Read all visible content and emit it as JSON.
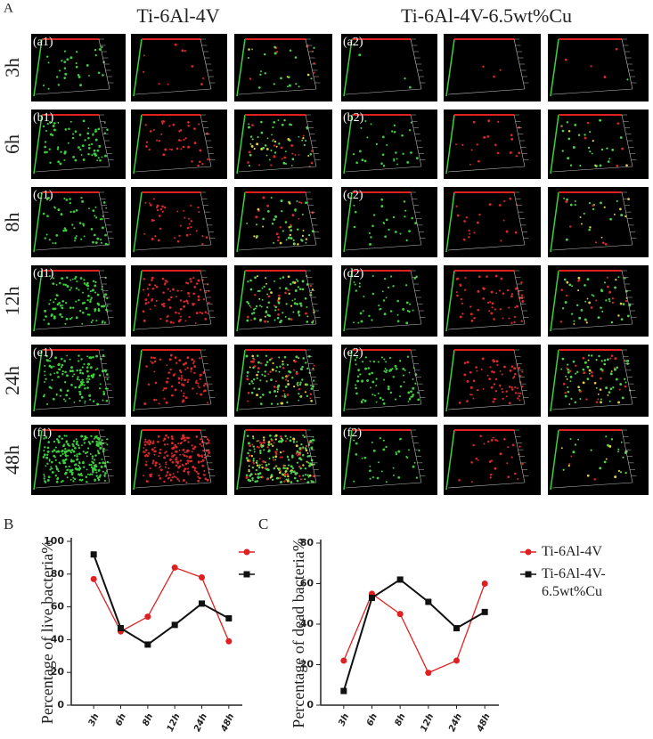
{
  "figure": {
    "panel_label": "A",
    "column_titles": [
      "Ti-6Al-4V",
      "Ti-6Al-4V-6.5wt%Cu"
    ],
    "row_labels": [
      "3h",
      "6h",
      "8h",
      "12h",
      "24h",
      "48h"
    ],
    "image_labels": [
      [
        "(a1)",
        "(a2)"
      ],
      [
        "(b1)",
        "(b2)"
      ],
      [
        "(c1)",
        "(c2)"
      ],
      [
        "(d1)",
        "(d2)"
      ],
      [
        "(e1)",
        "(e2)"
      ],
      [
        "(f1)",
        "(f2)"
      ]
    ]
  },
  "chart_data": [
    {
      "type": "line",
      "panel_label": "B",
      "y_label": "Percentage of live bacteria%",
      "categories": [
        "3h",
        "6h",
        "8h",
        "12h",
        "24h",
        "48h"
      ],
      "series": [
        {
          "color": "#e02020",
          "values": [
            77,
            45,
            54,
            84,
            78,
            39
          ]
        },
        {
          "color": "#111111",
          "values": [
            92,
            47,
            37,
            49,
            62,
            53
          ]
        }
      ],
      "ylim": [
        0,
        100
      ],
      "yticks": [
        0,
        20,
        40,
        60,
        80,
        100
      ]
    },
    {
      "type": "line",
      "panel_label": "C",
      "y_label": "Percentage of dead bacteria%",
      "categories": [
        "3h",
        "6h",
        "8h",
        "12h",
        "24h",
        "48h"
      ],
      "series": [
        {
          "name": "Ti-6Al-4V",
          "color": "#e02020",
          "values": [
            22,
            55,
            45,
            16,
            22,
            60
          ]
        },
        {
          "name": "Ti-6Al-4V-6.5wt%Cu",
          "color": "#111111",
          "values": [
            7,
            53,
            62,
            51,
            38,
            46
          ]
        }
      ],
      "ylim": [
        0,
        80
      ],
      "yticks": [
        0,
        20,
        40,
        60,
        80
      ]
    }
  ]
}
